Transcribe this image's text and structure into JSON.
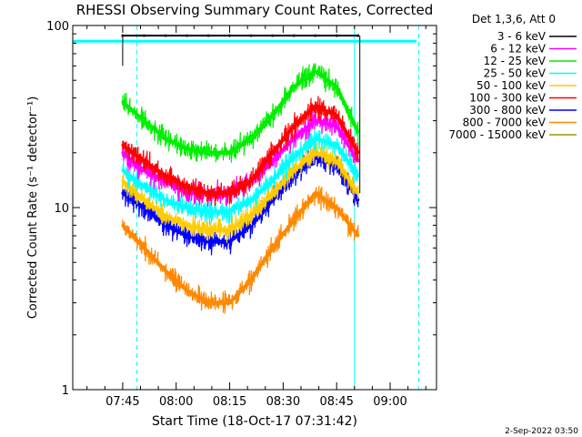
{
  "chart_data": {
    "type": "line",
    "title": "RHESSI Observing Summary Count Rates, Corrected",
    "xlabel": "Start Time (18-Oct-17 07:31:42)",
    "ylabel": "Corrected Count Rate (s⁻¹ detector⁻¹)",
    "yscale": "log",
    "ylim": [
      1,
      100
    ],
    "xlim_minutes_after_0731": [
      0,
      102
    ],
    "x_ticks": [
      "07:45",
      "08:00",
      "08:15",
      "08:30",
      "08:45",
      "09:00"
    ],
    "y_ticks": [
      "1",
      "10",
      "100"
    ],
    "legend_header": "Det 1,3,6, Att 0",
    "legend_position": "top-right",
    "footer": "2-Sep-2022 03:50",
    "x_minutes": [
      14,
      20,
      26,
      32,
      38,
      44,
      50,
      56,
      62,
      68,
      74,
      80
    ],
    "series": [
      {
        "name": "3 - 6 keV",
        "color": "#000000",
        "values": [
          88,
          88,
          88,
          88,
          88,
          88,
          88,
          88,
          88,
          88,
          88,
          88
        ]
      },
      {
        "name": "6 - 12 keV",
        "color": "#ff00ff",
        "values": [
          20,
          16,
          14,
          12,
          12,
          12,
          14,
          18,
          24,
          30,
          28,
          18
        ]
      },
      {
        "name": "12 - 25 keV",
        "color": "#00ee00",
        "values": [
          38,
          30,
          24,
          21,
          20,
          20,
          24,
          32,
          46,
          56,
          46,
          26
        ]
      },
      {
        "name": "25 - 50 keV",
        "color": "#00ffff",
        "values": [
          16,
          13,
          11,
          10,
          9.5,
          9.5,
          11,
          14,
          19,
          24,
          22,
          15
        ]
      },
      {
        "name": "50 - 100 keV",
        "color": "#ffcc00",
        "values": [
          14,
          11,
          9,
          8,
          7.5,
          7.5,
          9,
          12,
          16,
          20,
          18,
          12
        ]
      },
      {
        "name": "100 - 300 keV",
        "color": "#ff0000",
        "values": [
          22,
          18,
          15,
          13,
          12,
          12,
          14,
          20,
          28,
          36,
          32,
          20
        ]
      },
      {
        "name": "300 - 800 keV",
        "color": "#0000ff",
        "values": [
          12,
          10,
          8,
          7,
          6.5,
          6.5,
          8,
          11,
          15,
          19,
          17,
          11
        ]
      },
      {
        "name": "800 - 7000 keV",
        "color": "#ff8800",
        "values": [
          8,
          6,
          4.5,
          3.5,
          3,
          3,
          4,
          6,
          8.5,
          12,
          10,
          7
        ]
      },
      {
        "name": "7000 - 15000 keV",
        "color": "#999900",
        "values": [
          null,
          null,
          null,
          null,
          null,
          null,
          null,
          null,
          null,
          null,
          null,
          null
        ]
      }
    ],
    "markers": {
      "solid_cyan_vertical_min": [
        0,
        79
      ],
      "dashed_cyan_vertical_min": [
        18,
        97
      ],
      "cyan_horizontal_level": 82
    }
  }
}
